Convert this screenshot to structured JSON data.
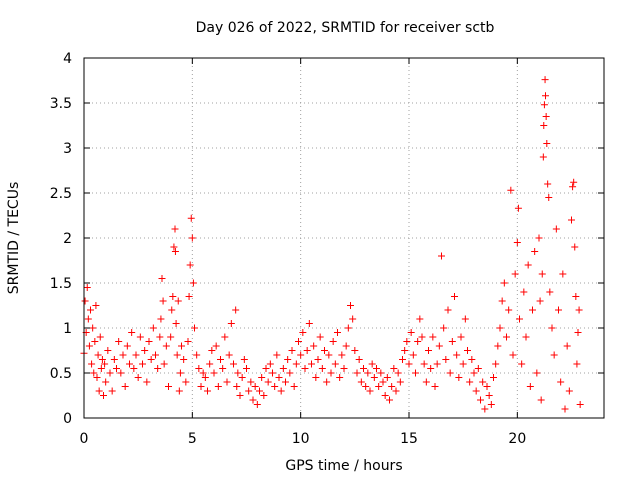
{
  "chart_data": {
    "type": "scatter",
    "title": "Day 026 of 2022, SRMTID for receiver sctb",
    "xlabel": "GPS time / hours",
    "ylabel": "SRMTID / TECUs",
    "xlim": [
      0,
      24
    ],
    "ylim": [
      0,
      4
    ],
    "xticks": [
      0,
      5,
      10,
      15,
      20
    ],
    "xtick_labels": [
      "0",
      "5",
      "10",
      "15",
      "20"
    ],
    "yticks": [
      0,
      0.5,
      1,
      1.5,
      2,
      2.5,
      3,
      3.5,
      4
    ],
    "ytick_labels": [
      "0",
      "0.5",
      "1",
      "1.5",
      "2",
      "2.5",
      "3",
      "3.5",
      "4"
    ],
    "grid": true,
    "marker": "+",
    "series_color": "#ff0000",
    "series": [
      {
        "name": "SRMTID",
        "points": [
          [
            0.0,
            0.72
          ],
          [
            0.05,
            1.3
          ],
          [
            0.1,
            0.95
          ],
          [
            0.15,
            1.45
          ],
          [
            0.2,
            1.1
          ],
          [
            0.25,
            0.8
          ],
          [
            0.3,
            1.2
          ],
          [
            0.35,
            0.6
          ],
          [
            0.4,
            1.0
          ],
          [
            0.45,
            0.5
          ],
          [
            0.5,
            0.85
          ],
          [
            0.55,
            1.25
          ],
          [
            0.6,
            0.45
          ],
          [
            0.65,
            0.7
          ],
          [
            0.7,
            0.3
          ],
          [
            0.75,
            0.9
          ],
          [
            0.8,
            0.55
          ],
          [
            0.85,
            0.65
          ],
          [
            0.9,
            0.25
          ],
          [
            0.95,
            0.6
          ],
          [
            1.0,
            0.4
          ],
          [
            1.1,
            0.75
          ],
          [
            1.2,
            0.5
          ],
          [
            1.3,
            0.3
          ],
          [
            1.4,
            0.65
          ],
          [
            1.5,
            0.55
          ],
          [
            1.6,
            0.85
          ],
          [
            1.7,
            0.5
          ],
          [
            1.8,
            0.7
          ],
          [
            1.9,
            0.35
          ],
          [
            2.0,
            0.8
          ],
          [
            2.1,
            0.6
          ],
          [
            2.2,
            0.95
          ],
          [
            2.3,
            0.55
          ],
          [
            2.4,
            0.7
          ],
          [
            2.5,
            0.45
          ],
          [
            2.6,
            0.9
          ],
          [
            2.7,
            0.6
          ],
          [
            2.8,
            0.75
          ],
          [
            2.9,
            0.4
          ],
          [
            3.0,
            0.85
          ],
          [
            3.1,
            0.65
          ],
          [
            3.2,
            1.0
          ],
          [
            3.3,
            0.7
          ],
          [
            3.4,
            0.55
          ],
          [
            3.5,
            0.9
          ],
          [
            3.55,
            1.1
          ],
          [
            3.6,
            1.55
          ],
          [
            3.65,
            1.3
          ],
          [
            3.7,
            0.6
          ],
          [
            3.8,
            0.8
          ],
          [
            3.9,
            0.35
          ],
          [
            4.0,
            0.9
          ],
          [
            4.05,
            1.2
          ],
          [
            4.1,
            1.35
          ],
          [
            4.15,
            1.9
          ],
          [
            4.2,
            2.1
          ],
          [
            4.22,
            1.85
          ],
          [
            4.25,
            1.05
          ],
          [
            4.3,
            0.7
          ],
          [
            4.35,
            1.3
          ],
          [
            4.4,
            0.3
          ],
          [
            4.45,
            0.5
          ],
          [
            4.5,
            0.8
          ],
          [
            4.6,
            0.65
          ],
          [
            4.7,
            0.4
          ],
          [
            4.8,
            0.85
          ],
          [
            4.85,
            1.35
          ],
          [
            4.9,
            1.7
          ],
          [
            4.95,
            2.22
          ],
          [
            5.0,
            2.0
          ],
          [
            5.05,
            1.5
          ],
          [
            5.1,
            1.0
          ],
          [
            5.2,
            0.7
          ],
          [
            5.3,
            0.55
          ],
          [
            5.4,
            0.35
          ],
          [
            5.5,
            0.5
          ],
          [
            5.6,
            0.45
          ],
          [
            5.7,
            0.3
          ],
          [
            5.8,
            0.6
          ],
          [
            5.9,
            0.75
          ],
          [
            6.0,
            0.5
          ],
          [
            6.1,
            0.8
          ],
          [
            6.2,
            0.35
          ],
          [
            6.3,
            0.65
          ],
          [
            6.4,
            0.55
          ],
          [
            6.5,
            0.9
          ],
          [
            6.6,
            0.4
          ],
          [
            6.7,
            0.7
          ],
          [
            6.8,
            1.05
          ],
          [
            6.9,
            0.6
          ],
          [
            7.0,
            1.2
          ],
          [
            7.05,
            0.35
          ],
          [
            7.1,
            0.5
          ],
          [
            7.2,
            0.25
          ],
          [
            7.3,
            0.45
          ],
          [
            7.4,
            0.65
          ],
          [
            7.5,
            0.55
          ],
          [
            7.6,
            0.3
          ],
          [
            7.7,
            0.4
          ],
          [
            7.8,
            0.2
          ],
          [
            7.9,
            0.35
          ],
          [
            8.0,
            0.15
          ],
          [
            8.1,
            0.3
          ],
          [
            8.2,
            0.45
          ],
          [
            8.3,
            0.25
          ],
          [
            8.4,
            0.55
          ],
          [
            8.5,
            0.4
          ],
          [
            8.6,
            0.6
          ],
          [
            8.7,
            0.5
          ],
          [
            8.8,
            0.35
          ],
          [
            8.9,
            0.7
          ],
          [
            9.0,
            0.45
          ],
          [
            9.1,
            0.3
          ],
          [
            9.2,
            0.55
          ],
          [
            9.3,
            0.4
          ],
          [
            9.4,
            0.65
          ],
          [
            9.5,
            0.5
          ],
          [
            9.6,
            0.75
          ],
          [
            9.7,
            0.35
          ],
          [
            9.8,
            0.6
          ],
          [
            9.9,
            0.85
          ],
          [
            10.0,
            0.7
          ],
          [
            10.1,
            0.95
          ],
          [
            10.2,
            0.55
          ],
          [
            10.3,
            0.75
          ],
          [
            10.4,
            1.05
          ],
          [
            10.5,
            0.6
          ],
          [
            10.6,
            0.8
          ],
          [
            10.7,
            0.45
          ],
          [
            10.8,
            0.65
          ],
          [
            10.9,
            0.9
          ],
          [
            11.0,
            0.55
          ],
          [
            11.1,
            0.75
          ],
          [
            11.2,
            0.4
          ],
          [
            11.3,
            0.7
          ],
          [
            11.4,
            0.5
          ],
          [
            11.5,
            0.85
          ],
          [
            11.6,
            0.6
          ],
          [
            11.7,
            0.95
          ],
          [
            11.8,
            0.45
          ],
          [
            11.9,
            0.7
          ],
          [
            12.0,
            0.55
          ],
          [
            12.1,
            0.8
          ],
          [
            12.2,
            1.0
          ],
          [
            12.3,
            1.25
          ],
          [
            12.4,
            1.1
          ],
          [
            12.5,
            0.75
          ],
          [
            12.6,
            0.5
          ],
          [
            12.7,
            0.65
          ],
          [
            12.8,
            0.4
          ],
          [
            12.9,
            0.55
          ],
          [
            13.0,
            0.35
          ],
          [
            13.1,
            0.5
          ],
          [
            13.2,
            0.3
          ],
          [
            13.3,
            0.6
          ],
          [
            13.4,
            0.45
          ],
          [
            13.5,
            0.55
          ],
          [
            13.6,
            0.35
          ],
          [
            13.7,
            0.5
          ],
          [
            13.8,
            0.4
          ],
          [
            13.9,
            0.25
          ],
          [
            14.0,
            0.45
          ],
          [
            14.1,
            0.2
          ],
          [
            14.2,
            0.35
          ],
          [
            14.3,
            0.55
          ],
          [
            14.4,
            0.3
          ],
          [
            14.5,
            0.5
          ],
          [
            14.6,
            0.4
          ],
          [
            14.7,
            0.65
          ],
          [
            14.8,
            0.75
          ],
          [
            14.9,
            0.85
          ],
          [
            15.0,
            0.6
          ],
          [
            15.1,
            0.95
          ],
          [
            15.2,
            0.7
          ],
          [
            15.3,
            0.5
          ],
          [
            15.4,
            0.85
          ],
          [
            15.5,
            1.1
          ],
          [
            15.6,
            0.9
          ],
          [
            15.7,
            0.6
          ],
          [
            15.8,
            0.4
          ],
          [
            15.9,
            0.75
          ],
          [
            16.0,
            0.55
          ],
          [
            16.1,
            0.9
          ],
          [
            16.2,
            0.35
          ],
          [
            16.3,
            0.6
          ],
          [
            16.4,
            0.8
          ],
          [
            16.5,
            1.8
          ],
          [
            16.6,
            1.0
          ],
          [
            16.7,
            0.65
          ],
          [
            16.8,
            1.2
          ],
          [
            16.9,
            0.5
          ],
          [
            17.0,
            0.85
          ],
          [
            17.1,
            1.35
          ],
          [
            17.2,
            0.7
          ],
          [
            17.3,
            0.45
          ],
          [
            17.4,
            0.9
          ],
          [
            17.5,
            0.6
          ],
          [
            17.6,
            1.1
          ],
          [
            17.7,
            0.75
          ],
          [
            17.8,
            0.4
          ],
          [
            17.9,
            0.65
          ],
          [
            18.0,
            0.5
          ],
          [
            18.1,
            0.3
          ],
          [
            18.2,
            0.55
          ],
          [
            18.3,
            0.2
          ],
          [
            18.4,
            0.4
          ],
          [
            18.5,
            0.1
          ],
          [
            18.6,
            0.35
          ],
          [
            18.7,
            0.25
          ],
          [
            18.8,
            0.15
          ],
          [
            18.9,
            0.45
          ],
          [
            19.0,
            0.6
          ],
          [
            19.1,
            0.8
          ],
          [
            19.2,
            1.0
          ],
          [
            19.3,
            1.3
          ],
          [
            19.4,
            1.5
          ],
          [
            19.5,
            0.9
          ],
          [
            19.6,
            1.2
          ],
          [
            19.7,
            2.53
          ],
          [
            19.8,
            0.7
          ],
          [
            19.9,
            1.6
          ],
          [
            20.0,
            1.95
          ],
          [
            20.05,
            2.33
          ],
          [
            20.1,
            1.1
          ],
          [
            20.2,
            0.6
          ],
          [
            20.3,
            1.4
          ],
          [
            20.4,
            0.9
          ],
          [
            20.5,
            1.7
          ],
          [
            20.6,
            0.35
          ],
          [
            20.7,
            1.2
          ],
          [
            20.8,
            1.85
          ],
          [
            20.9,
            0.5
          ],
          [
            21.0,
            2.0
          ],
          [
            21.05,
            1.3
          ],
          [
            21.1,
            0.2
          ],
          [
            21.15,
            1.6
          ],
          [
            21.2,
            2.9
          ],
          [
            21.22,
            3.25
          ],
          [
            21.25,
            3.48
          ],
          [
            21.28,
            3.76
          ],
          [
            21.3,
            3.58
          ],
          [
            21.33,
            3.35
          ],
          [
            21.36,
            3.05
          ],
          [
            21.4,
            2.6
          ],
          [
            21.45,
            2.45
          ],
          [
            21.5,
            1.4
          ],
          [
            21.6,
            1.0
          ],
          [
            21.7,
            0.7
          ],
          [
            21.8,
            2.1
          ],
          [
            21.9,
            1.2
          ],
          [
            22.0,
            0.4
          ],
          [
            22.1,
            1.6
          ],
          [
            22.2,
            0.1
          ],
          [
            22.3,
            0.8
          ],
          [
            22.4,
            0.3
          ],
          [
            22.5,
            2.2
          ],
          [
            22.55,
            2.57
          ],
          [
            22.6,
            2.62
          ],
          [
            22.65,
            1.9
          ],
          [
            22.7,
            1.35
          ],
          [
            22.75,
            0.6
          ],
          [
            22.8,
            0.95
          ],
          [
            22.85,
            1.2
          ],
          [
            22.9,
            0.15
          ]
        ]
      }
    ]
  }
}
